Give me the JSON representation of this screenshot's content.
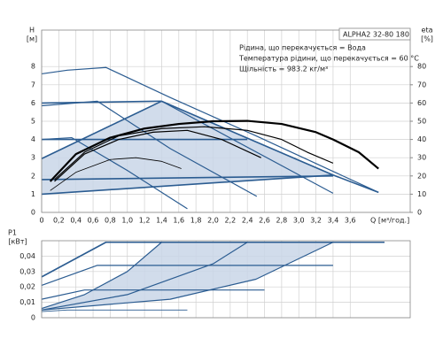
{
  "chart_data": [
    {
      "type": "line",
      "model": "ALPHA2 32-80 180",
      "annotations": [
        "Рідина, що перекачується = Вода",
        "Температура рідини, що перекачується = 60 °C",
        "Щільність = 983.2 кг/м³"
      ],
      "y_label": "H",
      "y_unit": "[м]",
      "y2_label": "eta",
      "y2_unit": "[%]",
      "x_label": "Q [м³/год.]",
      "xlim": [
        0,
        4.3
      ],
      "xticks": [
        0,
        {
          "value": 0.2,
          "label": "0,2"
        },
        {
          "value": 0.4,
          "label": "0,4"
        },
        {
          "value": 0.6,
          "label": "0,6"
        },
        {
          "value": 0.8,
          "label": "0,8"
        },
        {
          "value": 1.0,
          "label": "1,0"
        },
        {
          "value": 1.2,
          "label": "1,2"
        },
        {
          "value": 1.4,
          "label": "1,4"
        },
        {
          "value": 1.6,
          "label": "1,6"
        },
        {
          "value": 1.8,
          "label": "1,8"
        },
        {
          "value": 2.0,
          "label": "2,0"
        },
        {
          "value": 2.2,
          "label": "2,2"
        },
        {
          "value": 2.4,
          "label": "2,4"
        },
        {
          "value": 2.6,
          "label": "2,6"
        },
        {
          "value": 2.8,
          "label": "2,8"
        },
        {
          "value": 3.0,
          "label": "3,0"
        },
        {
          "value": 3.2,
          "label": "3,2"
        },
        {
          "value": 3.4,
          "label": "3,4"
        },
        {
          "value": 3.6,
          "label": "3,6"
        }
      ],
      "ylim": [
        0,
        10
      ],
      "yticks": [
        0,
        1,
        2,
        3,
        4,
        5,
        6,
        7,
        8
      ],
      "y2lim": [
        0,
        100
      ],
      "y2ticks": [
        0,
        10,
        20,
        30,
        40,
        50,
        60,
        70,
        80
      ],
      "grid": true,
      "area": {
        "color": "#c9d6e8",
        "x": [
          0,
          1.4,
          3.4,
          0
        ],
        "values": [
          2.95,
          6.1,
          2.05,
          1.0
        ]
      },
      "series": [
        {
          "color": "#2b5c91",
          "width": 1.2,
          "x": [
            0,
            0.3,
            0.75,
            1.5,
            2.5,
            3.4,
            3.93
          ],
          "values": [
            7.6,
            7.8,
            7.95,
            6.3,
            4.2,
            2.25,
            1.1
          ]
        },
        {
          "color": "#2b5c91",
          "width": 1.2,
          "x": [
            0,
            0.65,
            1.5,
            2.51
          ],
          "values": [
            5.85,
            6.1,
            3.5,
            0.88
          ]
        },
        {
          "color": "#2b5c91",
          "width": 1.2,
          "x": [
            0,
            0.35,
            1.0,
            1.7
          ],
          "values": [
            4.0,
            4.1,
            2.3,
            0.2
          ]
        },
        {
          "color": "#2b5c91",
          "width": 1.6,
          "x": [
            0,
            1.4
          ],
          "values": [
            6.0,
            6.1
          ]
        },
        {
          "color": "#2b5c91",
          "width": 1.6,
          "x": [
            0,
            2.4
          ],
          "values": [
            4.0,
            4.0
          ]
        },
        {
          "color": "#2b5c91",
          "width": 1.6,
          "x": [
            0,
            1.4
          ],
          "values": [
            2.95,
            6.1
          ]
        },
        {
          "color": "#2b5c91",
          "width": 1.6,
          "x": [
            0,
            3.4
          ],
          "values": [
            1.8,
            2.0
          ]
        },
        {
          "color": "#2b5c91",
          "width": 1.6,
          "x": [
            0,
            3.4
          ],
          "values": [
            1.0,
            2.05
          ]
        },
        {
          "color": "#2b5c91",
          "width": 1.6,
          "x": [
            1.4,
            3.4,
            3.93
          ],
          "values": [
            6.1,
            2.05,
            1.1
          ]
        },
        {
          "color": "#2b5c91",
          "width": 1.2,
          "x": [
            1.4,
            3.4
          ],
          "values": [
            6.1,
            1.05
          ]
        },
        {
          "color": "#000000",
          "width": 2.2,
          "axis": "y2",
          "x": [
            0.1,
            0.4,
            0.8,
            1.2,
            1.6,
            2.0,
            2.4,
            2.8,
            3.2,
            3.4,
            3.7,
            3.93
          ],
          "values": [
            17,
            32,
            41,
            46,
            48.5,
            50,
            50.2,
            48.5,
            44,
            40,
            33,
            24
          ]
        },
        {
          "color": "#000000",
          "width": 1.2,
          "axis": "y2",
          "x": [
            0.15,
            0.5,
            0.9,
            1.4,
            1.9,
            2.4,
            2.8,
            3.1,
            3.4
          ],
          "values": [
            18,
            33,
            42,
            46,
            47,
            45,
            40,
            33,
            27
          ]
        },
        {
          "color": "#000000",
          "width": 1.2,
          "axis": "y2",
          "x": [
            0.15,
            0.5,
            0.9,
            1.3,
            1.7,
            2.1,
            2.56
          ],
          "values": [
            17,
            32,
            40,
            44,
            45,
            40,
            30
          ]
        },
        {
          "color": "#000000",
          "width": 0.8,
          "axis": "y2",
          "x": [
            0.1,
            0.4,
            0.8,
            1.1,
            1.4,
            1.63
          ],
          "values": [
            12,
            22,
            29,
            30,
            28,
            24
          ]
        }
      ]
    },
    {
      "type": "line",
      "y_label": "P1",
      "y_unit": "[кВт]",
      "xlim": [
        0,
        4.3
      ],
      "ylim": [
        0,
        0.05
      ],
      "yticks": [
        0,
        {
          "value": 0.01,
          "label": "0,01"
        },
        {
          "value": 0.02,
          "label": "0,02"
        },
        {
          "value": 0.03,
          "label": "0,03"
        },
        {
          "value": 0.04,
          "label": "0,04"
        }
      ],
      "grid": true,
      "area": {
        "color": "#c9d6e8",
        "x": [
          0,
          0.5,
          1.0,
          1.4,
          3.4,
          2.5,
          1.5,
          0
        ],
        "values": [
          0.006,
          0.015,
          0.03,
          0.049,
          0.049,
          0.025,
          0.012,
          0.005
        ]
      },
      "series": [
        {
          "color": "#2b5c91",
          "width": 1.6,
          "x": [
            0,
            0.75,
            4.0
          ],
          "values": [
            0.0265,
            0.049,
            0.049
          ]
        },
        {
          "color": "#2b5c91",
          "width": 1.2,
          "x": [
            0,
            0.65,
            3.4
          ],
          "values": [
            0.021,
            0.034,
            0.034
          ]
        },
        {
          "color": "#2b5c91",
          "width": 1.2,
          "x": [
            0,
            0.5,
            2.6
          ],
          "values": [
            0.012,
            0.018,
            0.018
          ]
        },
        {
          "color": "#2b5c91",
          "width": 0.8,
          "x": [
            0,
            0.3,
            1.7
          ],
          "values": [
            0.004,
            0.005,
            0.005
          ]
        },
        {
          "color": "#2b5c91",
          "width": 1.2,
          "x": [
            0,
            0.5,
            1.0,
            1.4
          ],
          "values": [
            0.006,
            0.015,
            0.03,
            0.049
          ]
        },
        {
          "color": "#2b5c91",
          "width": 1.2,
          "x": [
            0,
            1.0,
            2.0,
            2.4
          ],
          "values": [
            0.005,
            0.015,
            0.035,
            0.049
          ]
        },
        {
          "color": "#2b5c91",
          "width": 1.2,
          "x": [
            0,
            1.5,
            2.5,
            3.4
          ],
          "values": [
            0.005,
            0.012,
            0.025,
            0.049
          ]
        }
      ]
    }
  ]
}
